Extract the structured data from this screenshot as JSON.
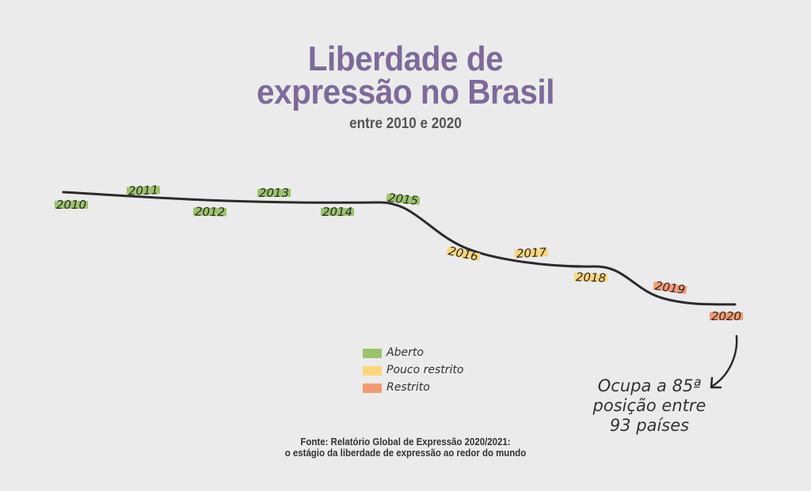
{
  "title_line1": "Liberdade de",
  "title_line2": "expressão no Brasil",
  "subtitle": "entre 2010 e 2020",
  "legend": [
    {
      "label": "Aberto",
      "color": "#9bc46a"
    },
    {
      "label": "Pouco restrito",
      "color": "#fcd67a"
    },
    {
      "label": "Restrito",
      "color": "#f49a72"
    }
  ],
  "annotation": [
    "Ocupa a 85ª",
    "posição entre",
    "93 países"
  ],
  "source": [
    "Fonte: Relatório Global de Expressão 2020/2021:",
    "o estágio da liberdade de expressão ao redor do mundo"
  ],
  "chart_data": {
    "type": "line",
    "x": [
      "2010",
      "2011",
      "2012",
      "2013",
      "2014",
      "2015",
      "2016",
      "2017",
      "2018",
      "2019",
      "2020"
    ],
    "categories": [
      "Aberto",
      "Aberto",
      "Aberto",
      "Aberto",
      "Aberto",
      "Aberto",
      "Pouco restrito",
      "Pouco restrito",
      "Pouco restrito",
      "Restrito",
      "Restrito"
    ],
    "colors": {
      "Aberto": "#9bc46a",
      "Pouco restrito": "#fcd67a",
      "Restrito": "#f49a72"
    }
  }
}
